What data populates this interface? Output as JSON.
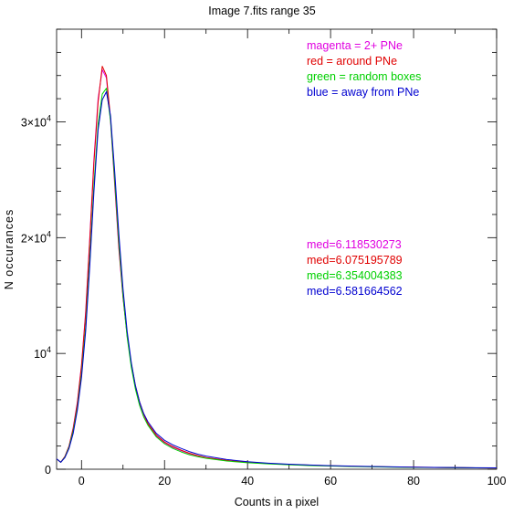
{
  "chart_data": {
    "type": "line",
    "title": "Image 7.fits   range 35",
    "xlabel": "Counts in a pixel",
    "ylabel": "N occurances",
    "xlim": [
      -6,
      100
    ],
    "ylim": [
      0,
      38000
    ],
    "x_ticks": [
      {
        "value": 0,
        "label": "0"
      },
      {
        "value": 20,
        "label": "20"
      },
      {
        "value": 40,
        "label": "40"
      },
      {
        "value": 60,
        "label": "60"
      },
      {
        "value": 80,
        "label": "80"
      },
      {
        "value": 100,
        "label": "100"
      }
    ],
    "y_ticks": [
      {
        "value": 0,
        "base": "0",
        "exp": ""
      },
      {
        "value": 10000,
        "base": "10",
        "exp": "4"
      },
      {
        "value": 20000,
        "base": "2×10",
        "exp": "4"
      },
      {
        "value": 30000,
        "base": "3×10",
        "exp": "4"
      }
    ],
    "legend": [
      {
        "text": "magenta = 2+ PNe",
        "color": "#e000e0"
      },
      {
        "text": "red = around PNe",
        "color": "#e00000"
      },
      {
        "text": "green = random boxes",
        "color": "#00d000"
      },
      {
        "text": "blue = away from PNe",
        "color": "#0000d0"
      }
    ],
    "medians": [
      {
        "text": "med=6.118530273",
        "color": "#e000e0"
      },
      {
        "text": "med=6.075195789",
        "color": "#e00000"
      },
      {
        "text": "med=6.354004383",
        "color": "#00d000"
      },
      {
        "text": "med=6.581664562",
        "color": "#0000d0"
      }
    ],
    "series": [
      {
        "color": "#e000e0",
        "x": [
          -6,
          -5,
          -4,
          -3,
          -2,
          -1,
          0,
          1,
          2,
          3,
          4,
          5,
          6,
          7,
          8,
          9,
          10,
          11,
          12,
          13,
          14,
          15,
          16,
          18,
          20,
          22,
          24,
          26,
          28,
          30,
          35,
          40,
          45,
          50,
          55,
          60,
          65,
          70,
          75,
          80,
          85,
          90,
          95,
          100
        ],
        "y": [
          900,
          600,
          1100,
          2000,
          3600,
          5800,
          9000,
          13600,
          20000,
          26800,
          32000,
          34500,
          33800,
          30000,
          24500,
          19000,
          14800,
          11500,
          9000,
          7100,
          5700,
          4700,
          3900,
          2900,
          2300,
          1900,
          1600,
          1350,
          1150,
          1000,
          750,
          580,
          480,
          400,
          340,
          290,
          250,
          220,
          190,
          170,
          150,
          130,
          120,
          110
        ]
      },
      {
        "color": "#e00000",
        "x": [
          -6,
          -5,
          -4,
          -3,
          -2,
          -1,
          0,
          1,
          2,
          3,
          4,
          5,
          6,
          7,
          8,
          9,
          10,
          11,
          12,
          13,
          14,
          15,
          16,
          18,
          20,
          22,
          24,
          26,
          28,
          30,
          35,
          40,
          45,
          50,
          55,
          60,
          65,
          70,
          75,
          80,
          85,
          90,
          95,
          100
        ],
        "y": [
          900,
          600,
          1100,
          2000,
          3500,
          5700,
          8900,
          13400,
          19800,
          26500,
          31700,
          34800,
          34000,
          30300,
          24800,
          19200,
          14900,
          11600,
          9100,
          7200,
          5800,
          4750,
          3950,
          2950,
          2350,
          1950,
          1650,
          1380,
          1170,
          1010,
          760,
          590,
          490,
          410,
          350,
          300,
          260,
          225,
          195,
          175,
          155,
          135,
          122,
          112
        ]
      },
      {
        "color": "#00d000",
        "x": [
          -6,
          -5,
          -4,
          -3,
          -2,
          -1,
          0,
          1,
          2,
          3,
          4,
          5,
          6,
          7,
          8,
          9,
          10,
          11,
          12,
          13,
          14,
          15,
          16,
          18,
          20,
          22,
          24,
          26,
          28,
          30,
          35,
          40,
          45,
          50,
          55,
          60,
          65,
          70,
          75,
          80,
          85,
          90,
          95,
          100
        ],
        "y": [
          900,
          600,
          1050,
          1900,
          3300,
          5300,
          8200,
          12300,
          18200,
          24600,
          29800,
          32400,
          32900,
          30100,
          25000,
          19600,
          15000,
          11400,
          8800,
          6900,
          5500,
          4500,
          3800,
          2800,
          2200,
          1800,
          1500,
          1250,
          1080,
          950,
          710,
          560,
          460,
          380,
          320,
          280,
          240,
          210,
          180,
          160,
          145,
          130,
          120,
          110
        ]
      },
      {
        "color": "#0000d0",
        "x": [
          -6,
          -5,
          -4,
          -3,
          -2,
          -1,
          0,
          1,
          2,
          3,
          4,
          5,
          6,
          7,
          8,
          9,
          10,
          11,
          12,
          13,
          14,
          15,
          16,
          18,
          20,
          22,
          24,
          26,
          28,
          30,
          35,
          40,
          45,
          50,
          55,
          60,
          65,
          70,
          75,
          80,
          85,
          90,
          95,
          100
        ],
        "y": [
          900,
          600,
          1000,
          1800,
          3100,
          5100,
          7900,
          11900,
          17600,
          24000,
          29300,
          31900,
          32600,
          30500,
          25700,
          20300,
          15600,
          11900,
          9200,
          7200,
          5800,
          4800,
          4100,
          3100,
          2500,
          2100,
          1800,
          1520,
          1300,
          1130,
          840,
          650,
          520,
          430,
          360,
          310,
          270,
          235,
          205,
          180,
          160,
          145,
          130,
          120
        ]
      }
    ]
  }
}
